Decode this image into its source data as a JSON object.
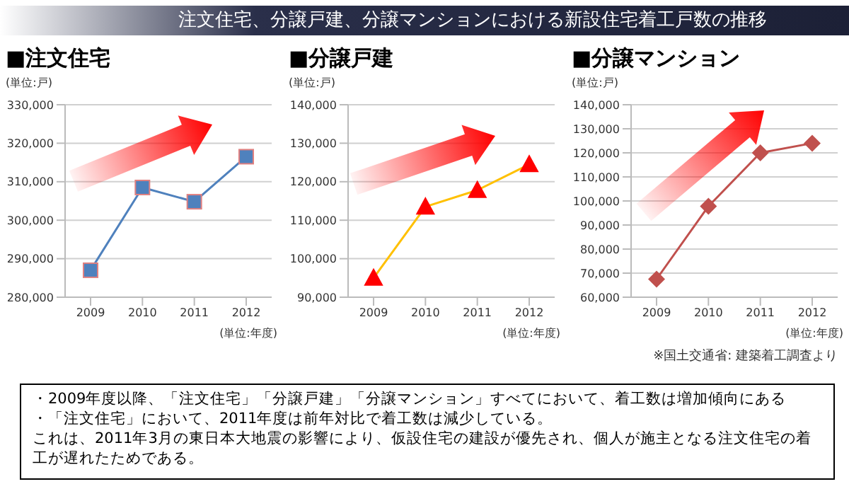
{
  "chart_data": [
    {
      "type": "line",
      "title": "■注文住宅",
      "ylabel": "(単位:戸)",
      "xlabel": "(単位:年度)",
      "categories": [
        "2009",
        "2010",
        "2011",
        "2012"
      ],
      "series": [
        {
          "color": "#4f81bd",
          "values": [
            287000,
            308500,
            304800,
            316500
          ]
        }
      ],
      "ylim": [
        280000,
        330000
      ],
      "yticks": [
        {
          "value": 280000,
          "label": "280,000"
        },
        {
          "value": 290000,
          "label": "290,000"
        },
        {
          "value": 300000,
          "label": "300,000"
        },
        {
          "value": 310000,
          "label": "310,000"
        },
        {
          "value": 320000,
          "label": "320,000"
        },
        {
          "value": 330000,
          "label": "330,000"
        }
      ],
      "grid": "y",
      "marker": "square"
    },
    {
      "type": "line",
      "title": "■分譲戸建",
      "ylabel": "(単位:戸)",
      "xlabel": "(単位:年度)",
      "categories": [
        "2009",
        "2010",
        "2011",
        "2012"
      ],
      "series": [
        {
          "color": "#ffc000",
          "values": [
            95000,
            113500,
            117800,
            124500
          ]
        }
      ],
      "ylim": [
        90000,
        140000
      ],
      "yticks": [
        {
          "value": 90000,
          "label": "90,000"
        },
        {
          "value": 100000,
          "label": "100,000"
        },
        {
          "value": 110000,
          "label": "110,000"
        },
        {
          "value": 120000,
          "label": "120,000"
        },
        {
          "value": 130000,
          "label": "130,000"
        },
        {
          "value": 140000,
          "label": "140,000"
        }
      ],
      "grid": "y",
      "marker": "triangle"
    },
    {
      "type": "line",
      "title": "■分譲マンション",
      "ylabel": "(単位:戸)",
      "xlabel": "(単位:年度)",
      "categories": [
        "2009",
        "2010",
        "2011",
        "2012"
      ],
      "series": [
        {
          "color": "#c0504d",
          "values": [
            67500,
            97800,
            120000,
            124000
          ]
        }
      ],
      "ylim": [
        60000,
        140000
      ],
      "yticks": [
        {
          "value": 60000,
          "label": "60,000"
        },
        {
          "value": 70000,
          "label": "70,000"
        },
        {
          "value": 80000,
          "label": "80,000"
        },
        {
          "value": 90000,
          "label": "90,000"
        },
        {
          "value": 100000,
          "label": "100,000"
        },
        {
          "value": 110000,
          "label": "110,000"
        },
        {
          "value": 120000,
          "label": "120,000"
        },
        {
          "value": 130000,
          "label": "130,000"
        },
        {
          "value": 140000,
          "label": "140,000"
        }
      ],
      "grid": "y",
      "marker": "diamond"
    },
    {
      "type": "other",
      "title": "注文住宅、分譲戸建、分譲マンションにおける新設住宅着工戸数の推移",
      "annotations": [
        "※国土交通省: 建築着工調査より",
        "・2009年度以降、「注文住宅」「分譲戸建」「分譲マンション」すべてにおいて、着工数は増加傾向にある",
        "・「注文住宅」において、2011年度は前年対比で着工数は減少している。",
        "これは、2011年3月の東日本大地震の影響により、仮設住宅の建設が優先され、個人が施主となる注文住宅の着工が遅れたためである。"
      ]
    }
  ]
}
